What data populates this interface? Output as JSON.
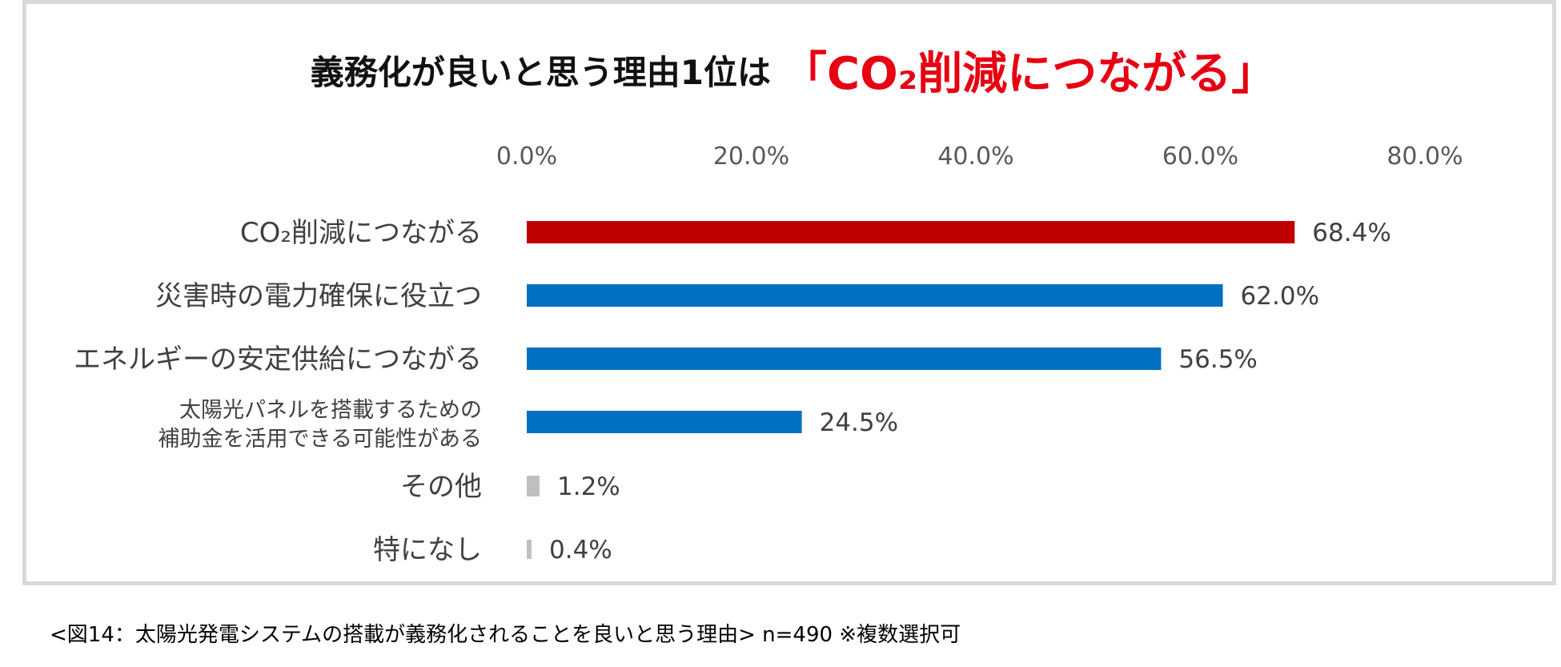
{
  "title": {
    "prefix": "義務化が良いと思う理由1位は",
    "highlight": "「CO₂削減につながる」"
  },
  "caption": "<図14：太陽光発電システムの搭載が義務化されることを良いと思う理由> n=490 ※複数選択可",
  "chart_data": {
    "type": "bar",
    "orientation": "horizontal",
    "x_ticks": [
      "0.0%",
      "20.0%",
      "40.0%",
      "60.0%",
      "80.0%"
    ],
    "xlim": [
      0,
      80
    ],
    "axis_position": "top",
    "grid": false,
    "categories": [
      [
        "CO₂削減につながる"
      ],
      [
        "災害時の電力確保に役立つ"
      ],
      [
        "エネルギーの安定供給につながる"
      ],
      [
        "太陽光パネルを搭載するための",
        "補助金を活用できる可能性がある"
      ],
      [
        "その他"
      ],
      [
        "特になし"
      ]
    ],
    "values": [
      68.4,
      62.0,
      56.5,
      24.5,
      1.2,
      0.4
    ],
    "data_labels": [
      "68.4%",
      "62.0%",
      "56.5%",
      "24.5%",
      "1.2%",
      "0.4%"
    ],
    "colors": [
      "#c00000",
      "#0070c0",
      "#0070c0",
      "#0070c0",
      "#bfbfbf",
      "#bfbfbf"
    ]
  }
}
